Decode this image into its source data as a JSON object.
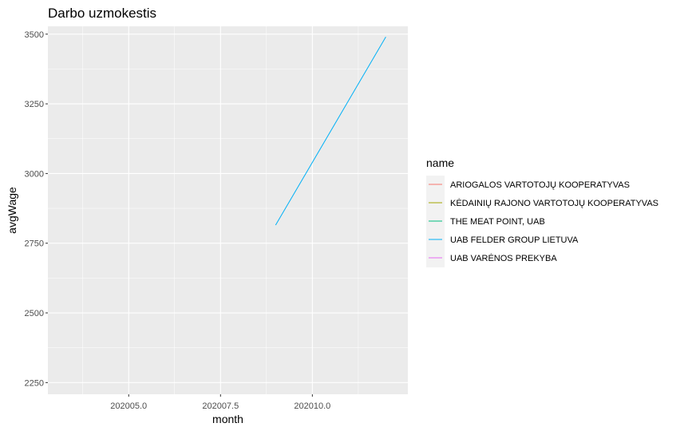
{
  "chart_data": {
    "type": "line",
    "title": "Darbo uzmokestis",
    "xlabel": "month",
    "ylabel": "avgWage",
    "xlim": [
      202002.8,
      202012.6
    ],
    "ylim": [
      2208,
      3528
    ],
    "x_ticks": [
      202005.0,
      202007.5,
      202010.0
    ],
    "x_tick_labels": [
      "202005.0",
      "202007.5",
      "202010.0"
    ],
    "y_ticks": [
      2250,
      2500,
      2750,
      3000,
      3250,
      3500
    ],
    "y_tick_labels": [
      "2250",
      "2500",
      "2750",
      "3000",
      "3250",
      "3500"
    ],
    "grid": true,
    "legend": {
      "title": "name",
      "placement": "right",
      "entries": [
        {
          "label": "ARIOGALOS VARTOTOJŲ KOOPERATYVAS",
          "color": "#F8766D"
        },
        {
          "label": "KĖDAINIŲ RAJONO VARTOTOJŲ KOOPERATYVAS",
          "color": "#A3A500"
        },
        {
          "label": "THE MEAT POINT, UAB",
          "color": "#00BF7D"
        },
        {
          "label": "UAB FELDER GROUP LIETUVA",
          "color": "#00B0F6"
        },
        {
          "label": "UAB VARĖNOS PREKYBA",
          "color": "#E76BF3"
        }
      ]
    },
    "series": [
      {
        "name": "UAB FELDER GROUP LIETUVA",
        "color": "#00B0F6",
        "x": [
          202009.0,
          202012.0
        ],
        "y": [
          2815,
          3490
        ]
      }
    ]
  }
}
